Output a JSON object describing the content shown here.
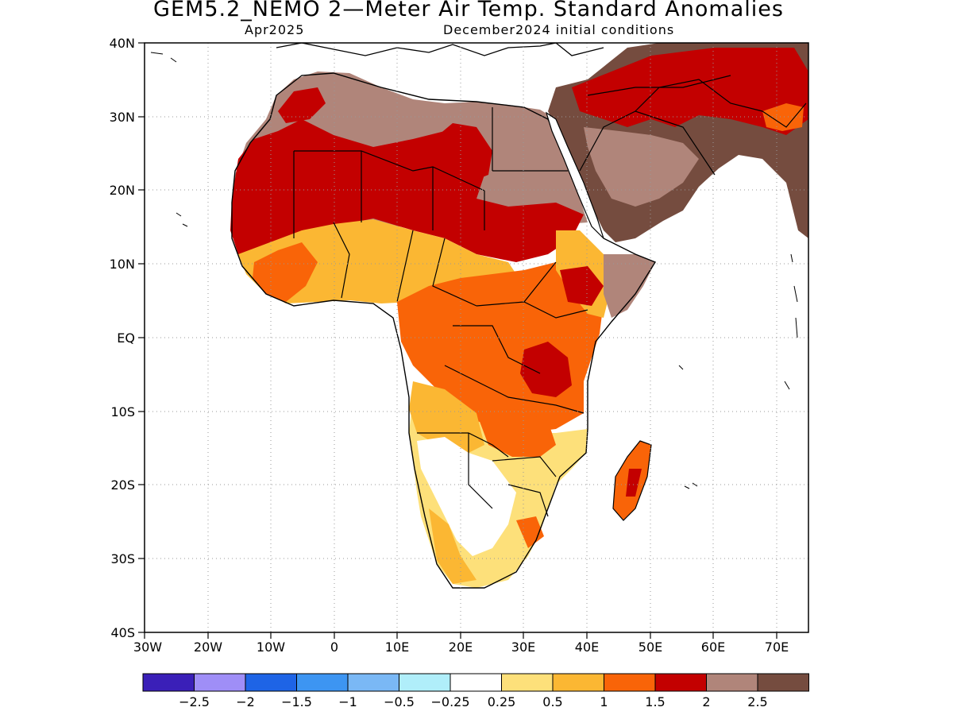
{
  "header": {
    "title": "GEM5.2_NEMO 2—Meter Air Temp. Standard Anomalies",
    "valid_month": "Apr2025",
    "init": "December2024 initial conditions"
  },
  "axes": {
    "lon_ticks": [
      "30W",
      "20W",
      "10W",
      "0",
      "10E",
      "20E",
      "30E",
      "40E",
      "50E",
      "60E",
      "70E"
    ],
    "lat_ticks": [
      "40N",
      "30N",
      "20N",
      "10N",
      "EQ",
      "10S",
      "20S",
      "30S",
      "40S"
    ],
    "lon_range": [
      -30,
      75
    ],
    "lat_range": [
      -40,
      40
    ]
  },
  "colorbar": {
    "colors": [
      "#3a1fb8",
      "#9f8ef7",
      "#1e64e6",
      "#3d95f2",
      "#7ab8f5",
      "#b0eefa",
      "#ffffff",
      "#fde07a",
      "#fbb733",
      "#f96408",
      "#c30000",
      "#b0857a",
      "#754c3f"
    ],
    "labels": [
      "−2.5",
      "−2",
      "−1.5",
      "−1",
      "−0.5",
      "−0.25",
      "0.25",
      "0.5",
      "1",
      "1.5",
      "2",
      "2.5"
    ]
  },
  "map": {
    "regions": [
      {
        "name": "sahara-west",
        "color": "#b0857a"
      },
      {
        "name": "sahara-central",
        "color": "#b0857a"
      },
      {
        "name": "sahel-band",
        "color": "#c30000"
      },
      {
        "name": "west-africa",
        "color": "#fbb733"
      },
      {
        "name": "central-africa",
        "color": "#f96408"
      },
      {
        "name": "southern-africa",
        "color": "#fde07a"
      },
      {
        "name": "kalahari",
        "color": "#ffffff"
      },
      {
        "name": "arabia",
        "color": "#754c3f"
      },
      {
        "name": "madagascar",
        "color": "#f96408"
      }
    ]
  }
}
